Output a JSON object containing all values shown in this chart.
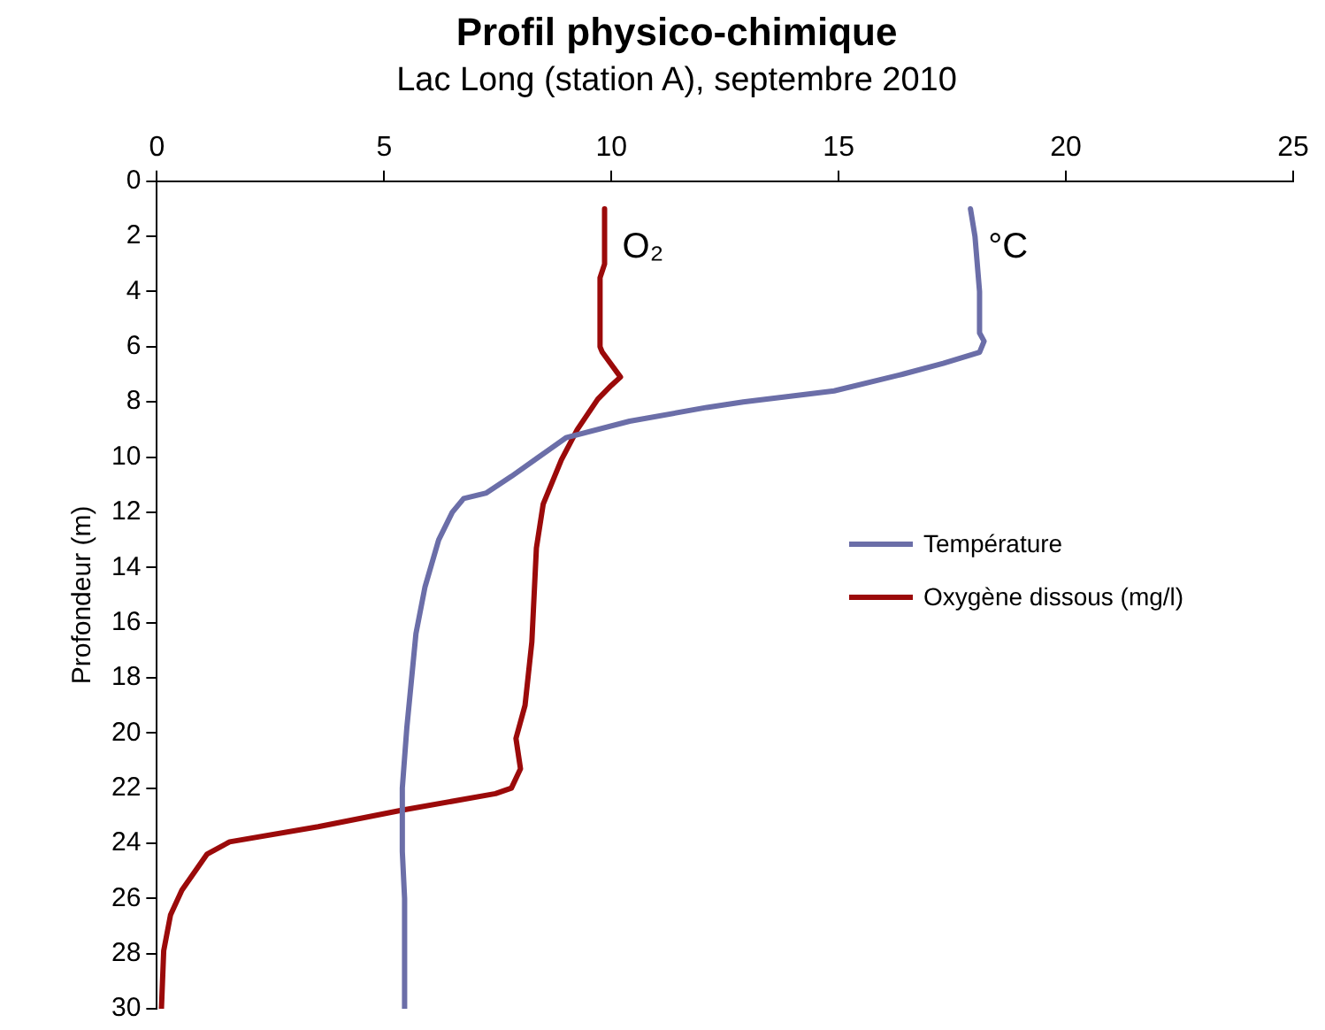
{
  "chart_data": {
    "type": "line",
    "title": "Profil physico-chimique",
    "subtitle": "Lac Long (station A), septembre 2010",
    "ylabel": "Profondeur (m)",
    "xlim": [
      0,
      25
    ],
    "xticks": [
      0,
      5,
      10,
      15,
      20,
      25
    ],
    "ylim": [
      30,
      0
    ],
    "yticks": [
      0,
      2,
      4,
      6,
      8,
      10,
      12,
      14,
      16,
      18,
      20,
      22,
      24,
      26,
      28,
      30
    ],
    "grid": false,
    "legend": "right",
    "marker": "none",
    "line_style": "solid",
    "annotations": [
      "°C",
      "O₂"
    ],
    "series": [
      {
        "name": "Température",
        "color": "#6b6ea8",
        "x": [
          17.9,
          18.0,
          18.1,
          18.1,
          18.2,
          18.1,
          17.3,
          16.4,
          14.9,
          12.9,
          12.1,
          10.4,
          9.0,
          8.4,
          7.8,
          7.25,
          6.75,
          6.5,
          6.2,
          5.9,
          5.7,
          5.6,
          5.5,
          5.4,
          5.4,
          5.45,
          5.45
        ],
        "values": [
          1,
          2,
          4,
          5.5,
          5.8,
          6.2,
          6.6,
          7.0,
          7.6,
          8.0,
          8.2,
          8.7,
          9.3,
          10.0,
          10.7,
          11.3,
          11.5,
          12,
          13,
          14.7,
          16.4,
          18.1,
          19.8,
          22,
          24.3,
          26,
          30
        ]
      },
      {
        "name": "Oxygène dissous (mg/l)",
        "color": "#9b0a0a",
        "x": [
          9.85,
          9.85,
          9.75,
          9.75,
          9.8,
          10.2,
          10.0,
          9.7,
          9.25,
          8.9,
          8.5,
          8.35,
          8.25,
          8.1,
          7.9,
          8.0,
          7.8,
          7.45,
          5.4,
          3.55,
          1.6,
          1.1,
          0.55,
          0.3,
          0.15,
          0.1
        ],
        "values": [
          1,
          3,
          3.5,
          6.0,
          6.2,
          7.1,
          7.4,
          7.9,
          9.0,
          10.1,
          11.7,
          13.3,
          16.7,
          19,
          20.2,
          21.3,
          22.0,
          22.2,
          22.8,
          23.4,
          23.95,
          24.4,
          25.7,
          26.6,
          27.9,
          30
        ]
      }
    ]
  }
}
